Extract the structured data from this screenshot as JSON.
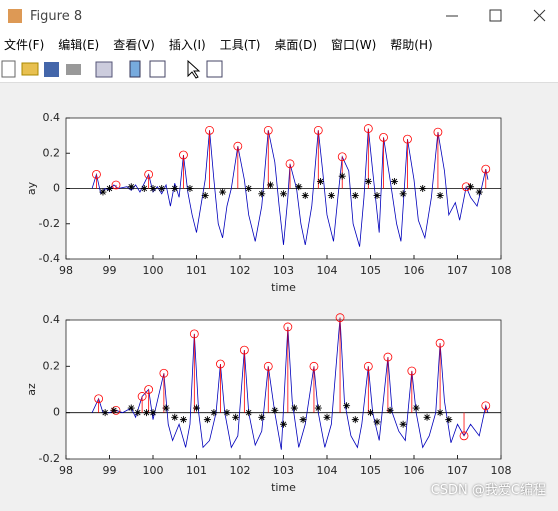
{
  "window": {
    "title": "Figure 8",
    "menus": [
      "文件(F)",
      "编辑(E)",
      "查看(V)",
      "插入(I)",
      "工具(T)",
      "桌面(D)",
      "窗口(W)",
      "帮助(H)"
    ],
    "watermark": "CSDN @我爱C编程"
  },
  "chart_data": [
    {
      "type": "line",
      "xlabel": "time",
      "ylabel": "ay",
      "xlim": [
        98,
        108
      ],
      "ylim": [
        -0.4,
        0.4
      ],
      "xticks": [
        98,
        99,
        100,
        101,
        102,
        103,
        104,
        105,
        106,
        107,
        108
      ],
      "yticks": [
        -0.4,
        -0.2,
        0,
        0.2,
        0.4
      ],
      "series": [
        {
          "style": "line",
          "color": "#0000bb",
          "x": [
            98.6,
            98.7,
            98.8,
            98.9,
            99.0,
            99.1,
            99.2,
            99.4,
            99.5,
            99.6,
            99.7,
            99.8,
            99.9,
            100.0,
            100.1,
            100.2,
            100.3,
            100.4,
            100.5,
            100.6,
            100.7,
            100.8,
            100.9,
            101.0,
            101.1,
            101.2,
            101.3,
            101.4,
            101.5,
            101.6,
            101.7,
            101.8,
            101.95,
            102.1,
            102.2,
            102.35,
            102.5,
            102.65,
            102.8,
            102.9,
            103.0,
            103.1,
            103.15,
            103.3,
            103.4,
            103.5,
            103.65,
            103.8,
            103.9,
            104.0,
            104.15,
            104.25,
            104.35,
            104.5,
            104.6,
            104.75,
            104.85,
            104.95,
            105.05,
            105.2,
            105.3,
            105.45,
            105.6,
            105.7,
            105.85,
            106.0,
            106.1,
            106.25,
            106.4,
            106.55,
            106.7,
            106.8,
            106.95,
            107.05,
            107.2,
            107.3,
            107.45,
            107.55,
            107.65,
            107.7
          ],
          "values": [
            0.0,
            0.08,
            -0.03,
            0.0,
            -0.01,
            0.02,
            0.0,
            0.01,
            -0.01,
            0.02,
            -0.02,
            0.03,
            0.08,
            -0.02,
            0.01,
            -0.03,
            0.02,
            -0.1,
            0.03,
            -0.05,
            0.19,
            -0.02,
            -0.15,
            -0.25,
            -0.1,
            0.05,
            0.33,
            0.05,
            -0.2,
            -0.28,
            -0.1,
            0.0,
            0.24,
            0.05,
            -0.15,
            -0.3,
            -0.1,
            0.33,
            0.15,
            -0.1,
            -0.32,
            -0.05,
            0.14,
            0.0,
            -0.2,
            -0.32,
            -0.1,
            0.33,
            0.1,
            -0.15,
            -0.3,
            -0.05,
            0.18,
            0.1,
            -0.2,
            -0.33,
            -0.05,
            0.34,
            0.1,
            -0.25,
            0.29,
            0.05,
            -0.2,
            -0.3,
            0.28,
            0.05,
            -0.18,
            -0.28,
            -0.05,
            0.32,
            0.1,
            -0.15,
            -0.08,
            -0.18,
            0.01,
            -0.05,
            -0.1,
            0.0,
            0.11,
            0.05
          ]
        },
        {
          "style": "stem",
          "color": "#ff0000",
          "x": [
            98.7,
            99.15,
            99.9,
            100.7,
            101.3,
            101.95,
            102.65,
            103.15,
            103.8,
            104.35,
            104.95,
            105.3,
            105.85,
            106.55,
            107.2,
            107.65
          ],
          "values": [
            0.08,
            0.02,
            0.08,
            0.19,
            0.33,
            0.24,
            0.33,
            0.14,
            0.33,
            0.18,
            0.34,
            0.29,
            0.28,
            0.32,
            0.01,
            0.11
          ]
        },
        {
          "style": "marker",
          "color": "#000000",
          "x": [
            98.85,
            99.0,
            99.5,
            99.8,
            100.0,
            100.2,
            100.5,
            100.85,
            101.2,
            101.6,
            102.2,
            102.5,
            102.7,
            103.0,
            103.35,
            103.5,
            103.85,
            104.1,
            104.35,
            104.65,
            104.95,
            105.15,
            105.55,
            105.75,
            106.2,
            106.6,
            107.3,
            107.5
          ],
          "values": [
            -0.02,
            0.0,
            0.01,
            0.0,
            0.0,
            0.0,
            0.0,
            0.0,
            -0.04,
            -0.02,
            0.0,
            -0.03,
            0.02,
            -0.03,
            0.01,
            -0.04,
            0.04,
            -0.04,
            0.07,
            -0.04,
            0.04,
            -0.04,
            0.04,
            -0.03,
            0.0,
            -0.04,
            0.01,
            -0.02
          ]
        }
      ]
    },
    {
      "type": "line",
      "xlabel": "time",
      "ylabel": "az",
      "xlim": [
        98,
        108
      ],
      "ylim": [
        -0.2,
        0.4
      ],
      "xticks": [
        98,
        99,
        100,
        101,
        102,
        103,
        104,
        105,
        106,
        107,
        108
      ],
      "yticks": [
        -0.2,
        0,
        0.2,
        0.4
      ],
      "series": [
        {
          "style": "line",
          "color": "#0000bb",
          "x": [
            98.6,
            98.75,
            98.85,
            99.0,
            99.15,
            99.3,
            99.5,
            99.6,
            99.75,
            99.9,
            100.0,
            100.1,
            100.25,
            100.35,
            100.45,
            100.6,
            100.75,
            100.85,
            100.95,
            101.05,
            101.15,
            101.3,
            101.45,
            101.55,
            101.65,
            101.8,
            101.95,
            102.1,
            102.2,
            102.35,
            102.5,
            102.65,
            102.8,
            102.95,
            103.1,
            103.2,
            103.35,
            103.5,
            103.7,
            103.8,
            103.95,
            104.1,
            104.3,
            104.4,
            104.55,
            104.7,
            104.8,
            104.95,
            105.05,
            105.2,
            105.4,
            105.5,
            105.65,
            105.8,
            105.95,
            106.05,
            106.2,
            106.35,
            106.5,
            106.6,
            106.7,
            106.85,
            107.0,
            107.15,
            107.3,
            107.5,
            107.65,
            107.7
          ],
          "values": [
            0.0,
            0.06,
            0.0,
            0.0,
            0.01,
            0.0,
            0.02,
            -0.02,
            0.07,
            0.1,
            -0.03,
            0.05,
            0.17,
            -0.05,
            -0.12,
            -0.05,
            -0.15,
            -0.05,
            0.34,
            0.0,
            -0.15,
            -0.12,
            0.0,
            0.21,
            0.0,
            -0.15,
            -0.1,
            0.27,
            0.0,
            -0.14,
            -0.08,
            0.2,
            0.0,
            -0.16,
            0.37,
            0.05,
            -0.15,
            -0.05,
            0.2,
            0.0,
            -0.15,
            -0.05,
            0.41,
            0.05,
            -0.1,
            -0.15,
            -0.05,
            0.2,
            0.0,
            -0.12,
            0.24,
            0.0,
            -0.08,
            -0.12,
            0.18,
            0.0,
            -0.15,
            -0.1,
            0.0,
            0.3,
            0.05,
            -0.13,
            -0.05,
            -0.1,
            -0.05,
            -0.1,
            0.03,
            0.0
          ]
        },
        {
          "style": "stem",
          "color": "#ff0000",
          "x": [
            98.75,
            99.15,
            99.75,
            99.9,
            100.25,
            100.95,
            101.55,
            102.1,
            102.65,
            103.1,
            103.7,
            104.3,
            104.95,
            105.4,
            105.95,
            106.6,
            107.15,
            107.65
          ],
          "values": [
            0.06,
            0.01,
            0.07,
            0.1,
            0.17,
            0.34,
            0.21,
            0.27,
            0.2,
            0.37,
            0.2,
            0.41,
            0.2,
            0.24,
            0.18,
            0.3,
            -0.1,
            0.03
          ]
        },
        {
          "style": "marker",
          "color": "#000000",
          "x": [
            98.9,
            99.1,
            99.5,
            99.65,
            99.85,
            100.0,
            100.3,
            100.5,
            100.7,
            101.0,
            101.25,
            101.4,
            101.7,
            101.9,
            102.2,
            102.5,
            102.8,
            103.0,
            103.25,
            103.45,
            103.8,
            104.0,
            104.45,
            104.65,
            105.0,
            105.15,
            105.45,
            105.75,
            106.05,
            106.3,
            106.6,
            106.8
          ],
          "values": [
            0.0,
            0.01,
            0.02,
            0.0,
            0.0,
            0.0,
            0.02,
            -0.02,
            -0.03,
            0.02,
            -0.03,
            0.0,
            0.0,
            -0.02,
            0.0,
            -0.02,
            0.01,
            -0.05,
            0.02,
            -0.03,
            0.02,
            -0.02,
            0.03,
            -0.03,
            0.0,
            -0.04,
            0.01,
            -0.05,
            0.02,
            -0.02,
            0.0,
            -0.03
          ]
        }
      ]
    }
  ]
}
